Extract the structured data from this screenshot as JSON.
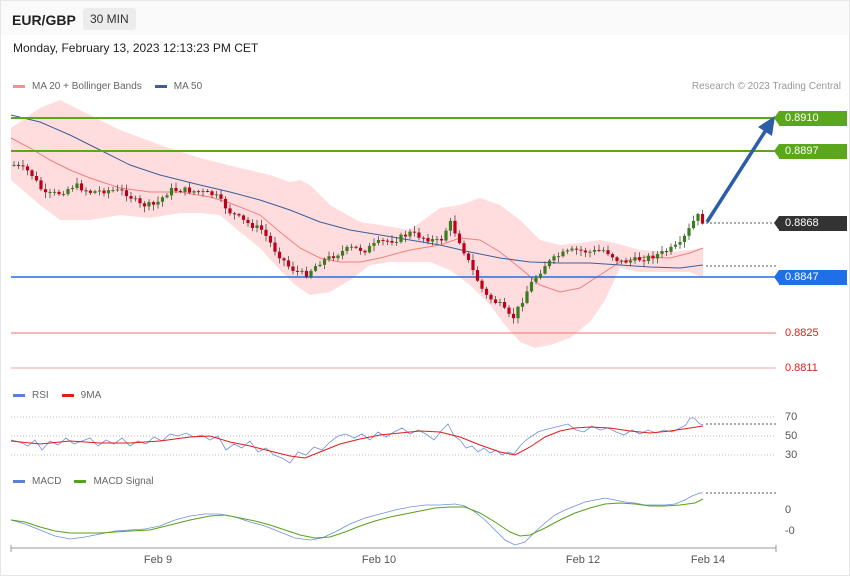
{
  "header": {
    "symbol": "EUR/GBP",
    "timeframe": "30 MIN"
  },
  "datetime": "Monday, February 13, 2023 12:13:23 PM CET",
  "legend": {
    "ma20_bb": "MA 20 + Bollinger Bands",
    "ma50": "MA 50",
    "copyright": "Research © 2023 Trading Central"
  },
  "levels": {
    "r2": "0.8910",
    "r1": "0.8897",
    "last": "0.8868",
    "s1": "0.8847",
    "s2": "0.8825",
    "s3": "0.8811"
  },
  "rsi_legend": {
    "rsi": "RSI",
    "ma": "9MA"
  },
  "rsi_axis": [
    "70",
    "50",
    "30"
  ],
  "macd_legend": {
    "macd": "MACD",
    "signal": "MACD Signal"
  },
  "macd_axis": [
    "0",
    "-0"
  ],
  "x_axis": [
    "Feb 9",
    "Feb 10",
    "Feb 12",
    "Feb 14"
  ],
  "colors": {
    "resistance": "#5aa71b",
    "support": "#1f6fe6",
    "support_weak": "#e02020",
    "last_price": "#333333",
    "bull_candle": "#3a7d1e",
    "bear_candle": "#c0001a",
    "bands_fill": "#ffd9da",
    "ma20": "#f08080",
    "ma50": "#3b5f9c",
    "rsi": "#5b7fd6",
    "rsi_ma": "#e31c1c",
    "macd": "#5b7fd6",
    "macd_signal": "#58a21a",
    "arrow": "#2b5da8"
  },
  "chart_data": [
    {
      "type": "candlestick",
      "title": "EUR/GBP",
      "timeframe": "30 MIN",
      "ylim": [
        0.8805,
        0.8915
      ],
      "x": [
        "Feb 9",
        "Feb 10",
        "Feb 12",
        "Feb 14"
      ],
      "levels": {
        "resistance": [
          0.891,
          0.8897
        ],
        "last": 0.8868,
        "support": [
          0.8847
        ],
        "support_minor": [
          0.8825,
          0.8811
        ]
      },
      "projection": {
        "from": 0.8868,
        "to": 0.891,
        "direction": "up"
      },
      "series": [
        {
          "name": "MA 20 + Bollinger Bands"
        },
        {
          "name": "MA 50"
        }
      ],
      "legend": "top-left"
    },
    {
      "type": "line",
      "series": [
        {
          "name": "RSI"
        },
        {
          "name": "9MA"
        }
      ],
      "yticks": [
        70,
        50,
        30
      ],
      "last_rsi": 66
    },
    {
      "type": "line",
      "series": [
        {
          "name": "MACD"
        },
        {
          "name": "MACD Signal"
        }
      ],
      "yticks": [
        "0",
        "-0"
      ]
    }
  ]
}
